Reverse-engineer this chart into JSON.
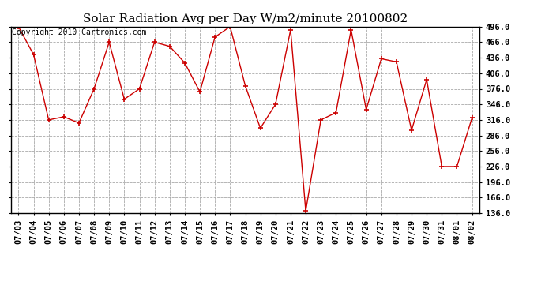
{
  "title": "Solar Radiation Avg per Day W/m2/minute 20100802",
  "copyright": "Copyright 2010 Cartronics.com",
  "dates": [
    "07/03",
    "07/04",
    "07/05",
    "07/06",
    "07/07",
    "07/08",
    "07/09",
    "07/10",
    "07/11",
    "07/12",
    "07/13",
    "07/14",
    "07/15",
    "07/16",
    "07/17",
    "07/18",
    "07/19",
    "07/20",
    "07/21",
    "07/22",
    "07/23",
    "07/24",
    "07/25",
    "07/26",
    "07/27",
    "07/28",
    "07/29",
    "07/30",
    "07/31",
    "08/01",
    "08/02"
  ],
  "values": [
    496,
    442,
    316,
    322,
    310,
    376,
    466,
    356,
    376,
    466,
    458,
    426,
    370,
    476,
    496,
    382,
    300,
    346,
    490,
    140,
    316,
    330,
    490,
    336,
    434,
    428,
    296,
    394,
    226,
    226,
    320
  ],
  "line_color": "#cc0000",
  "marker": "+",
  "marker_color": "#cc0000",
  "bg_color": "#ffffff",
  "grid_color": "#aaaaaa",
  "ylim_min": 136.0,
  "ylim_max": 496.0,
  "ytick_step": 30.0,
  "title_fontsize": 11,
  "tick_fontsize": 7.5,
  "copyright_fontsize": 7
}
